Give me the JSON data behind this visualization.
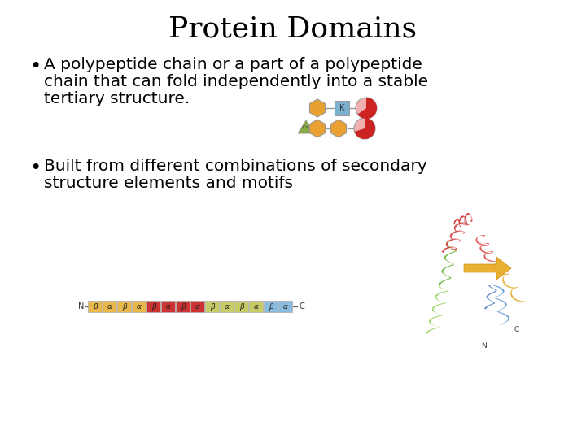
{
  "title": "Protein Domains",
  "title_fontsize": 26,
  "title_font": "serif",
  "bg_color": "#ffffff",
  "text_color": "#000000",
  "bullet1_line1": "A polypeptide chain or a part of a polypeptide",
  "bullet1_line2": "chain that can fold independently into a stable",
  "bullet1_line3": "tertiary structure.",
  "bullet2_line1": "Built from different combinations of secondary",
  "bullet2_line2": "structure elements and motifs",
  "body_fontsize": 14.5,
  "body_font": "sans-serif",
  "seq_labels": [
    "β",
    "α",
    "β",
    "α",
    "β",
    "α",
    "β",
    "α",
    "β",
    "α",
    "β",
    "α",
    "β",
    "α"
  ],
  "seq_colors": [
    "#e8b84b",
    "#e8b84b",
    "#e8b84b",
    "#e8b84b",
    "#cc3333",
    "#cc3333",
    "#cc3333",
    "#cc3333",
    "#c8cc66",
    "#c8cc66",
    "#c8cc66",
    "#c8cc66",
    "#88bbdd",
    "#88bbdd"
  ],
  "hex_color": "#e8a030",
  "k_box_color": "#7ab0d0",
  "pie_main_color": "#cc2222",
  "pie_bg_color": "#f0b0b0",
  "tri_color": "#88aa44",
  "edge_color": "#999999"
}
